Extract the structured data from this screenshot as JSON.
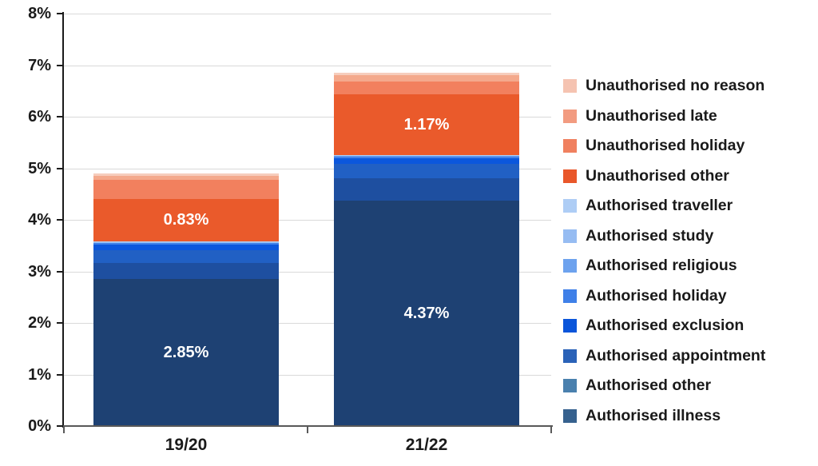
{
  "chart_data": {
    "type": "bar",
    "stacked": true,
    "title": "",
    "xlabel": "",
    "ylabel": "",
    "categories": [
      "19/20",
      "21/22"
    ],
    "series": [
      {
        "name": "Authorised illness",
        "values": [
          2.85,
          4.37
        ],
        "labels": [
          "2.85%",
          "4.37%"
        ],
        "color": "#1e4173",
        "legend_color": "#36618e"
      },
      {
        "name": "Authorised other",
        "values": [
          0.31,
          0.43
        ],
        "labels": null,
        "color": "#1e4fa0",
        "legend_color": "#4a80ae"
      },
      {
        "name": "Authorised appointment",
        "values": [
          0.25,
          0.28
        ],
        "labels": null,
        "color": "#2160c4",
        "legend_color": "#2a62b8"
      },
      {
        "name": "Authorised exclusion",
        "values": [
          0.11,
          0.12
        ],
        "labels": null,
        "color": "#0b57dd",
        "legend_color": "#0a55da"
      },
      {
        "name": "Authorised holiday",
        "values": [
          0.03,
          0.03
        ],
        "labels": null,
        "color": "#4182e9",
        "legend_color": "#3f80e8"
      },
      {
        "name": "Authorised religious",
        "values": [
          0.01,
          0.01
        ],
        "labels": null,
        "color": "#6da2ee",
        "legend_color": "#6da2ee"
      },
      {
        "name": "Authorised study",
        "values": [
          0.01,
          0.01
        ],
        "labels": null,
        "color": "#96bcf2",
        "legend_color": "#96bcf2"
      },
      {
        "name": "Authorised traveller",
        "values": [
          0.01,
          0.01
        ],
        "labels": null,
        "color": "#aecdf5",
        "legend_color": "#aecdf5"
      },
      {
        "name": "Unauthorised other",
        "values": [
          0.83,
          1.17
        ],
        "labels": [
          "0.83%",
          "1.17%"
        ],
        "color": "#ea5a2b",
        "legend_color": "#e9572a"
      },
      {
        "name": "Unauthorised holiday",
        "values": [
          0.37,
          0.26
        ],
        "labels": null,
        "color": "#f2805e",
        "legend_color": "#f0805f"
      },
      {
        "name": "Unauthorised late",
        "values": [
          0.08,
          0.11
        ],
        "labels": null,
        "color": "#f4a98c",
        "legend_color": "#f29b80"
      },
      {
        "name": "Unauthorised no reason",
        "values": [
          0.04,
          0.05
        ],
        "labels": null,
        "color": "#f6cdbd",
        "legend_color": "#f5c3b1"
      }
    ],
    "ylim": [
      0,
      8
    ],
    "yticks": [
      "0%",
      "1%",
      "2%",
      "3%",
      "4%",
      "5%",
      "6%",
      "7%",
      "8%"
    ],
    "grid": true,
    "legend_position": "right",
    "legend_order": "top-of-stack-first",
    "colors": {
      "gridline": "#d9d9d9",
      "y_axis": "#1a1a1a",
      "x_axis": "#595959",
      "tick_label_text": "#1a1a1a",
      "legend_text": "#1a1a1a",
      "data_label_text": "#ffffff",
      "background": "#ffffff"
    }
  }
}
